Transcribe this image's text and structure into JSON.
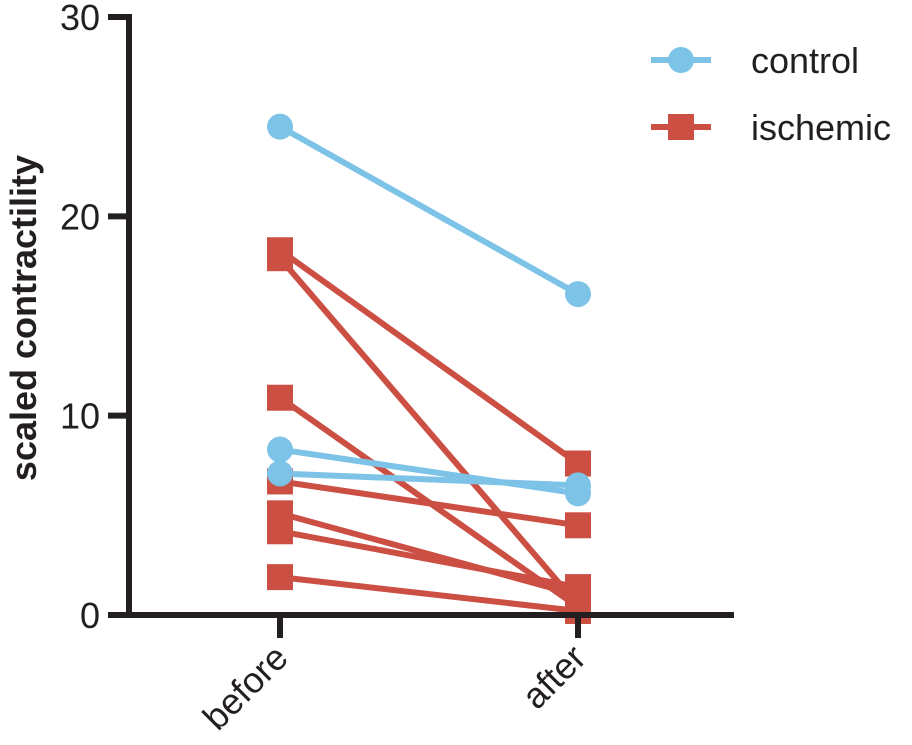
{
  "chart_data": {
    "type": "line",
    "categories": [
      "before",
      "after"
    ],
    "ylabel": "scaled contractility",
    "ylim": [
      0,
      30
    ],
    "yticks": [
      0,
      10,
      20,
      30
    ],
    "grid": false,
    "legend_position": "top-right",
    "series": [
      {
        "name": "control",
        "color": "#7cc3e7",
        "marker": "circle",
        "pairs": [
          [
            24.5,
            16.1
          ],
          [
            8.3,
            6.1
          ],
          [
            7.1,
            6.5
          ]
        ]
      },
      {
        "name": "ischemic",
        "color": "#cc4f43",
        "marker": "square",
        "pairs": [
          [
            18.3,
            7.6
          ],
          [
            17.9,
            0.5
          ],
          [
            10.9,
            0.4
          ],
          [
            6.7,
            4.5
          ],
          [
            5.1,
            1.0
          ],
          [
            4.2,
            1.4
          ],
          [
            1.9,
            0.2
          ]
        ]
      }
    ]
  }
}
